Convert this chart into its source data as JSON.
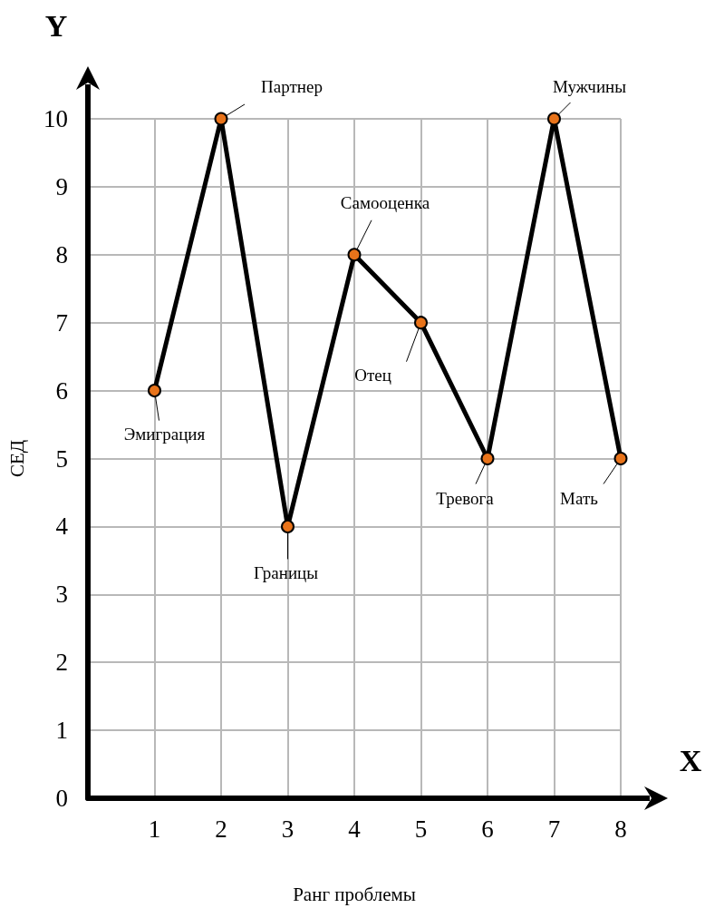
{
  "chart_data": {
    "type": "line",
    "xlabel": "Ранг проблемы",
    "ylabel": "СЕД",
    "x": [
      1,
      2,
      3,
      4,
      5,
      6,
      7,
      8
    ],
    "series": [
      {
        "color": "#000000",
        "colors": [
          "#e8731a",
          "#e8731a",
          "#e8731a",
          "#e8731a",
          "#e8731a",
          "#e8731a",
          "#e8731a",
          "#e8731a"
        ],
        "values": [
          6,
          10,
          4,
          8,
          7,
          5,
          10,
          5
        ]
      }
    ],
    "xlim": [
      0,
      8
    ],
    "ylim": [
      0,
      10
    ],
    "xticks": [
      1,
      2,
      3,
      4,
      5,
      6,
      7,
      8
    ],
    "yticks": [
      0,
      1,
      2,
      3,
      4,
      5,
      6,
      7,
      8,
      9,
      10
    ],
    "grid": true,
    "marker": "circle",
    "line_style": "solid",
    "annotations": [
      "Y",
      "X",
      {
        "text": "Эмиграция",
        "x": 1,
        "y": 6
      },
      {
        "text": "Партнер",
        "x": 2,
        "y": 10
      },
      {
        "text": "Границы",
        "x": 3,
        "y": 4
      },
      {
        "text": "Самооценка",
        "x": 4,
        "y": 8
      },
      {
        "text": "Отец",
        "x": 5,
        "y": 7
      },
      {
        "text": "Тревога",
        "x": 6,
        "y": 5
      },
      {
        "text": "Мужчины",
        "x": 7,
        "y": 10
      },
      {
        "text": "Мать",
        "x": 8,
        "y": 5
      }
    ]
  }
}
